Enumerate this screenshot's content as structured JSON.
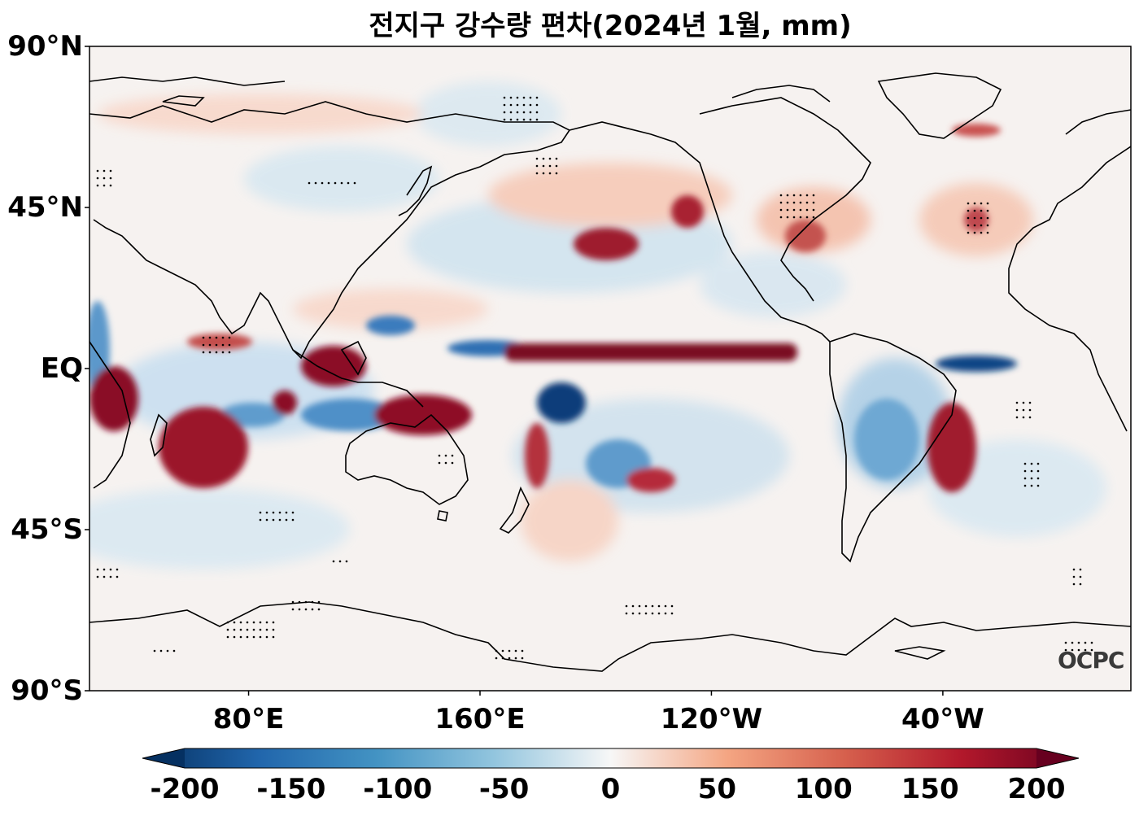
{
  "title": "전지구 강수량 편차(2024년 1월, mm)",
  "map": {
    "lat_ticks": [
      {
        "label": "90°N",
        "lat": 90
      },
      {
        "label": "45°N",
        "lat": 45
      },
      {
        "label": "EQ",
        "lat": 0
      },
      {
        "label": "45°S",
        "lat": -45
      },
      {
        "label": "90°S",
        "lat": -90
      }
    ],
    "lon_ticks": [
      {
        "label": "80°E",
        "lon": 80
      },
      {
        "label": "160°E",
        "lon": 160
      },
      {
        "label": "120°W",
        "lon": 240
      },
      {
        "label": "40°W",
        "lon": 320
      }
    ],
    "lon_range": [
      25,
      385
    ],
    "lat_range": [
      -90,
      90
    ]
  },
  "colorbar": {
    "ticks": [
      "-200",
      "-150",
      "-100",
      "-50",
      "0",
      "50",
      "100",
      "150",
      "200"
    ],
    "range": [
      -200,
      200
    ],
    "colors": [
      "#053061",
      "#2166ac",
      "#4393c3",
      "#92c5de",
      "#f7f7f7",
      "#f4a582",
      "#d6604d",
      "#b2182b",
      "#67001f"
    ],
    "extend": "both"
  },
  "watermark": "OCPC"
}
